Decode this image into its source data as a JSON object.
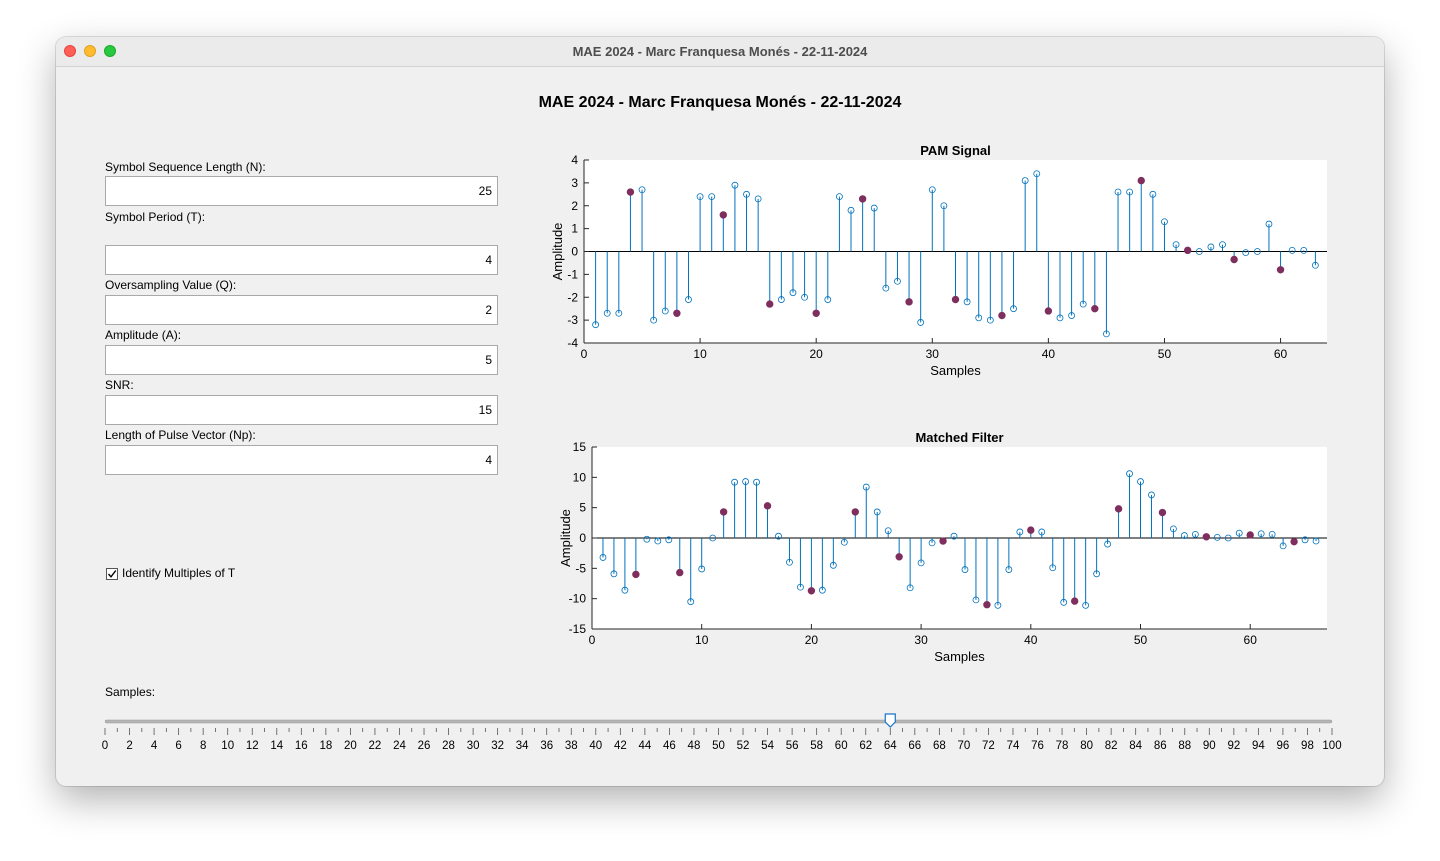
{
  "window": {
    "title": "MAE 2024 - Marc Franquesa Monés - 22-11-2024",
    "controls": [
      "close",
      "minimize",
      "zoom"
    ]
  },
  "app_title": "MAE 2024 - Marc Franquesa Monés - 22-11-2024",
  "inputs": [
    {
      "label": "Symbol Sequence Length (N):",
      "value": "25"
    },
    {
      "label": "Symbol Period (T):",
      "value": "4"
    },
    {
      "label": "Oversampling Value (Q):",
      "value": "2"
    },
    {
      "label": "Amplitude (A):",
      "value": "5"
    },
    {
      "label": "SNR:",
      "value": "15"
    },
    {
      "label": "Length of Pulse Vector (Np):",
      "value": "4"
    }
  ],
  "checkbox": {
    "label": "Identify Multiples of T",
    "checked": true
  },
  "slider": {
    "label": "Samples:",
    "value": 64,
    "min": 0,
    "max": 100,
    "tick_labels": [
      "0",
      "2",
      "4",
      "6",
      "8",
      "10",
      "12",
      "14",
      "16",
      "18",
      "20",
      "22",
      "24",
      "26",
      "28",
      "30",
      "32",
      "34",
      "36",
      "38",
      "40",
      "42",
      "44",
      "46",
      "48",
      "50",
      "52",
      "54",
      "56",
      "58",
      "60",
      "62",
      "64",
      "66",
      "68",
      "70",
      "72",
      "74",
      "76",
      "78",
      "80",
      "82",
      "84",
      "86",
      "88",
      "90",
      "92",
      "94",
      "96",
      "98",
      "100"
    ]
  },
  "colors": {
    "stem": "#0072bd",
    "highlight": "#7e2f5e"
  },
  "chart_data": [
    {
      "type": "stem",
      "title": "PAM Signal",
      "xlabel": "Samples",
      "ylabel": "Amplitude",
      "xlim": [
        0,
        64
      ],
      "ylim": [
        -4,
        4
      ],
      "xticks": [
        "0",
        "10",
        "20",
        "30",
        "40",
        "50",
        "60"
      ],
      "yticks": [
        "4",
        "3",
        "2",
        "1",
        "0",
        "-1",
        "-2",
        "-3",
        "-4"
      ],
      "highlight_every": 4,
      "x_start": 1,
      "values": [
        -3.2,
        -2.7,
        -2.7,
        2.6,
        2.7,
        -3.0,
        -2.6,
        -2.7,
        -2.1,
        2.4,
        2.4,
        1.6,
        2.9,
        2.5,
        2.3,
        -2.3,
        -2.1,
        -1.8,
        -2.0,
        -2.7,
        -2.1,
        2.4,
        1.8,
        2.3,
        1.9,
        -1.6,
        -1.3,
        -2.2,
        -3.1,
        2.7,
        2.0,
        -2.1,
        -2.2,
        -2.9,
        -3.0,
        -2.8,
        -2.5,
        3.1,
        3.4,
        -2.6,
        -2.9,
        -2.8,
        -2.3,
        -2.5,
        -3.6,
        2.6,
        2.6,
        3.1,
        2.5,
        1.3,
        0.3,
        0.05,
        0.0,
        0.2,
        0.3,
        -0.35,
        -0.05,
        0.0,
        1.2,
        -0.8,
        0.05,
        0.05,
        -0.6
      ]
    },
    {
      "type": "stem",
      "title": "Matched Filter",
      "xlabel": "Samples",
      "ylabel": "Amplitude",
      "xlim": [
        0,
        67
      ],
      "ylim": [
        -15,
        15
      ],
      "xticks": [
        "0",
        "10",
        "20",
        "30",
        "40",
        "50",
        "60"
      ],
      "yticks": [
        "15",
        "10",
        "5",
        "0",
        "-5",
        "-10",
        "-15"
      ],
      "highlight_every": 4,
      "x_start": 1,
      "values": [
        -3.2,
        -5.9,
        -8.6,
        -6.0,
        -0.2,
        -0.5,
        -0.3,
        -5.7,
        -10.5,
        -5.1,
        0.0,
        4.3,
        9.2,
        9.3,
        9.2,
        5.3,
        0.3,
        -4.0,
        -8.1,
        -8.7,
        -8.6,
        -4.5,
        -0.7,
        4.3,
        8.4,
        4.3,
        1.2,
        -3.1,
        -8.2,
        -4.1,
        -0.8,
        -0.5,
        0.3,
        -5.2,
        -10.2,
        -11.0,
        -11.1,
        -5.2,
        1.0,
        1.3,
        1.0,
        -4.9,
        -10.6,
        -10.4,
        -11.1,
        -5.9,
        -1.0,
        4.8,
        10.6,
        9.3,
        7.1,
        4.2,
        1.5,
        0.4,
        0.6,
        0.2,
        0.1,
        0.0,
        0.8,
        0.5,
        0.7,
        0.6,
        -1.3,
        -0.6,
        -0.3,
        -0.5
      ]
    }
  ]
}
